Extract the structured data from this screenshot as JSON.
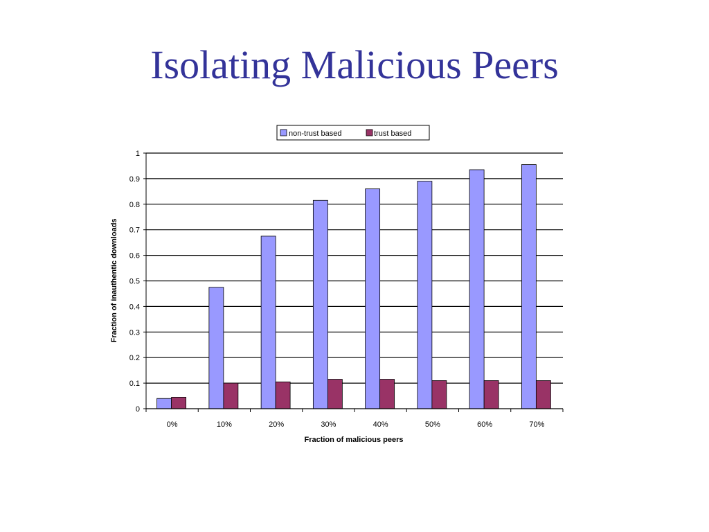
{
  "slide": {
    "title": "Isolating Malicious Peers"
  },
  "chart_data": {
    "type": "bar",
    "categories": [
      "0%",
      "10%",
      "20%",
      "30%",
      "40%",
      "50%",
      "60%",
      "70%"
    ],
    "series": [
      {
        "name": "non-trust based",
        "color": "#9999ff",
        "values": [
          0.04,
          0.475,
          0.675,
          0.815,
          0.86,
          0.89,
          0.935,
          0.955
        ]
      },
      {
        "name": "trust based",
        "color": "#993366",
        "values": [
          0.045,
          0.1,
          0.105,
          0.115,
          0.115,
          0.11,
          0.11,
          0.11
        ]
      }
    ],
    "xlabel": "Fraction of malicious peers",
    "ylabel": "Fraction of inauthentic downloads",
    "ylim": [
      0,
      1
    ],
    "yticks": [
      "0",
      "0.1",
      "0.2",
      "0.3",
      "0.4",
      "0.5",
      "0.6",
      "0.7",
      "0.8",
      "0.9",
      "1"
    ],
    "grid": true,
    "legend_position": "top"
  }
}
